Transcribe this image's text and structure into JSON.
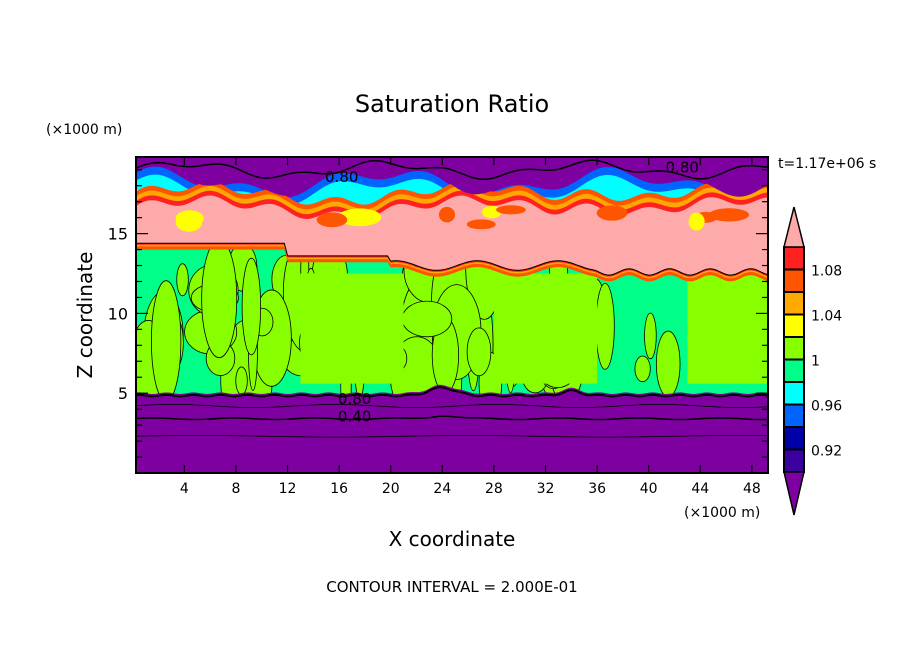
{
  "chart_data": {
    "type": "heatmap",
    "subtype": "filled-contour",
    "title": "Saturation Ratio",
    "xlabel": "X coordinate",
    "ylabel": "Z coordinate",
    "x_unit_label": "(×1000 m)",
    "y_unit_label": "(×1000 m)",
    "xlim": [
      0.25,
      49.25
    ],
    "ylim": [
      0,
      19.8
    ],
    "xticks": [
      4,
      8,
      12,
      16,
      20,
      24,
      28,
      32,
      36,
      40,
      44,
      48
    ],
    "yticks": [
      5,
      10,
      15
    ],
    "time_label": "t=1.17e+06 s",
    "footer": "CONTOUR INTERVAL = 2.000E-01",
    "colorbar": {
      "levels": [
        0.9,
        0.92,
        0.94,
        0.96,
        0.98,
        1.0,
        1.02,
        1.04,
        1.06,
        1.08,
        1.1
      ],
      "tick_labels": [
        "0.92",
        "0.96",
        "1",
        "1.04",
        "1.08"
      ],
      "tick_values": [
        0.92,
        0.96,
        1.0,
        1.04,
        1.08
      ],
      "colors": [
        "#3a00a0",
        "#0000a8",
        "#0064ff",
        "#00ffff",
        "#00ff88",
        "#88ff00",
        "#ffff00",
        "#ffa800",
        "#ff5400",
        "#ff2020"
      ],
      "under_color": "#7f00a0",
      "over_color": "#ffaaaa",
      "extend": "both"
    },
    "contour_labels": [
      {
        "text": "0.80",
        "x": 16.2,
        "y": 18.6
      },
      {
        "text": "0.80",
        "x": 42.6,
        "y": 19.2
      },
      {
        "text": "0.80",
        "x": 17.2,
        "y": 4.7
      },
      {
        "text": "0.40",
        "x": 17.2,
        "y": 3.6
      }
    ],
    "regions_description": {
      "z_0_5": "below 0.90 (purple), contours 0.40/0.80",
      "z_5_13": "0.98-1.02 (green/lime)",
      "z_13_17": "above 1.10 (pink) with orange/red edges",
      "z_17_20": "below 0.90 (purple)"
    }
  }
}
